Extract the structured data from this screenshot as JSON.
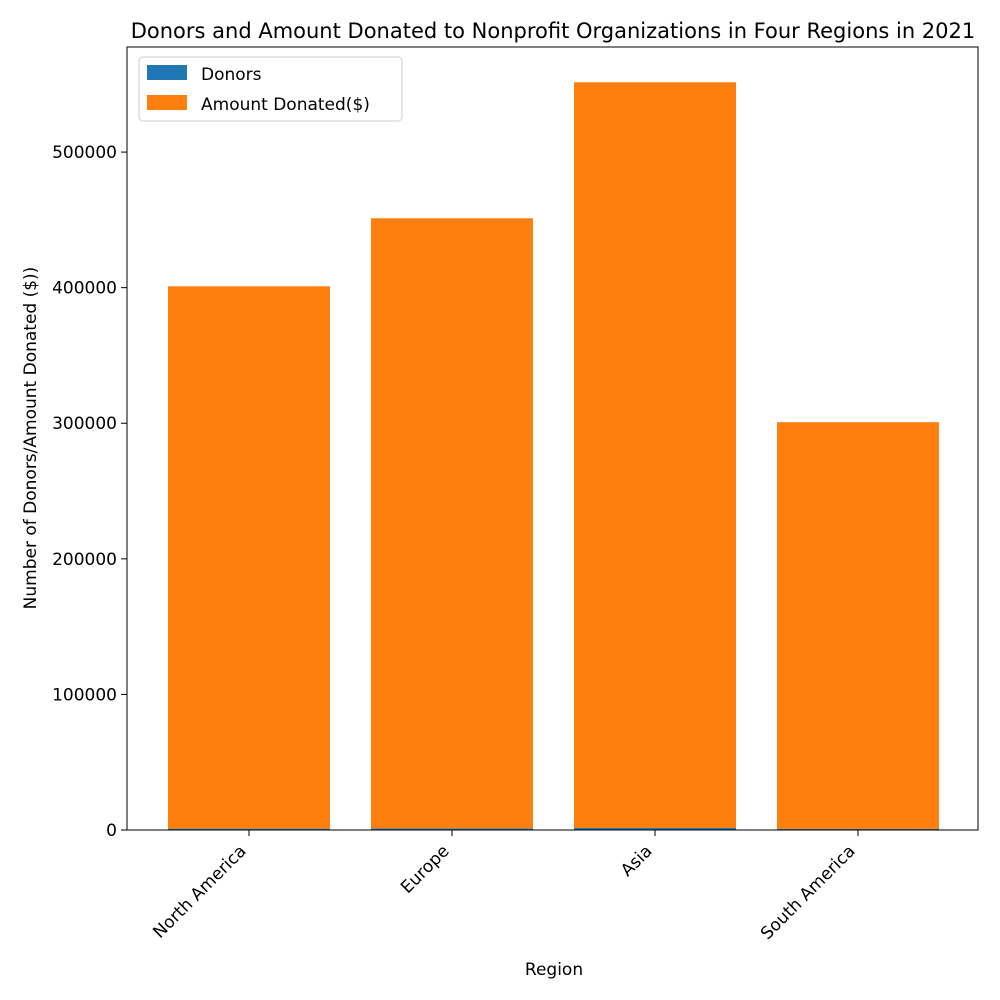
{
  "chart_data": {
    "type": "bar",
    "title": "Donors and Amount Donated to Nonprofit Organizations in Four Regions in 2021",
    "xlabel": "Region",
    "ylabel": "Number of Donors/Amount Donated ($))",
    "categories": [
      "North America",
      "Europe",
      "Asia",
      "South America"
    ],
    "series": [
      {
        "name": "Donors",
        "values": [
          1000,
          1200,
          1500,
          800
        ],
        "color": "#1f77b4"
      },
      {
        "name": "Amount Donated($)",
        "values": [
          400000,
          450000,
          550000,
          300000
        ],
        "color": "#ff7f0e"
      }
    ],
    "stacked": true,
    "ylim": [
      0,
      577500
    ],
    "yticks": [
      0,
      100000,
      200000,
      300000,
      400000,
      500000
    ],
    "ytick_labels": [
      "0",
      "100000",
      "200000",
      "300000",
      "400000",
      "500000"
    ],
    "legend_position": "upper-left",
    "grid": false
  }
}
